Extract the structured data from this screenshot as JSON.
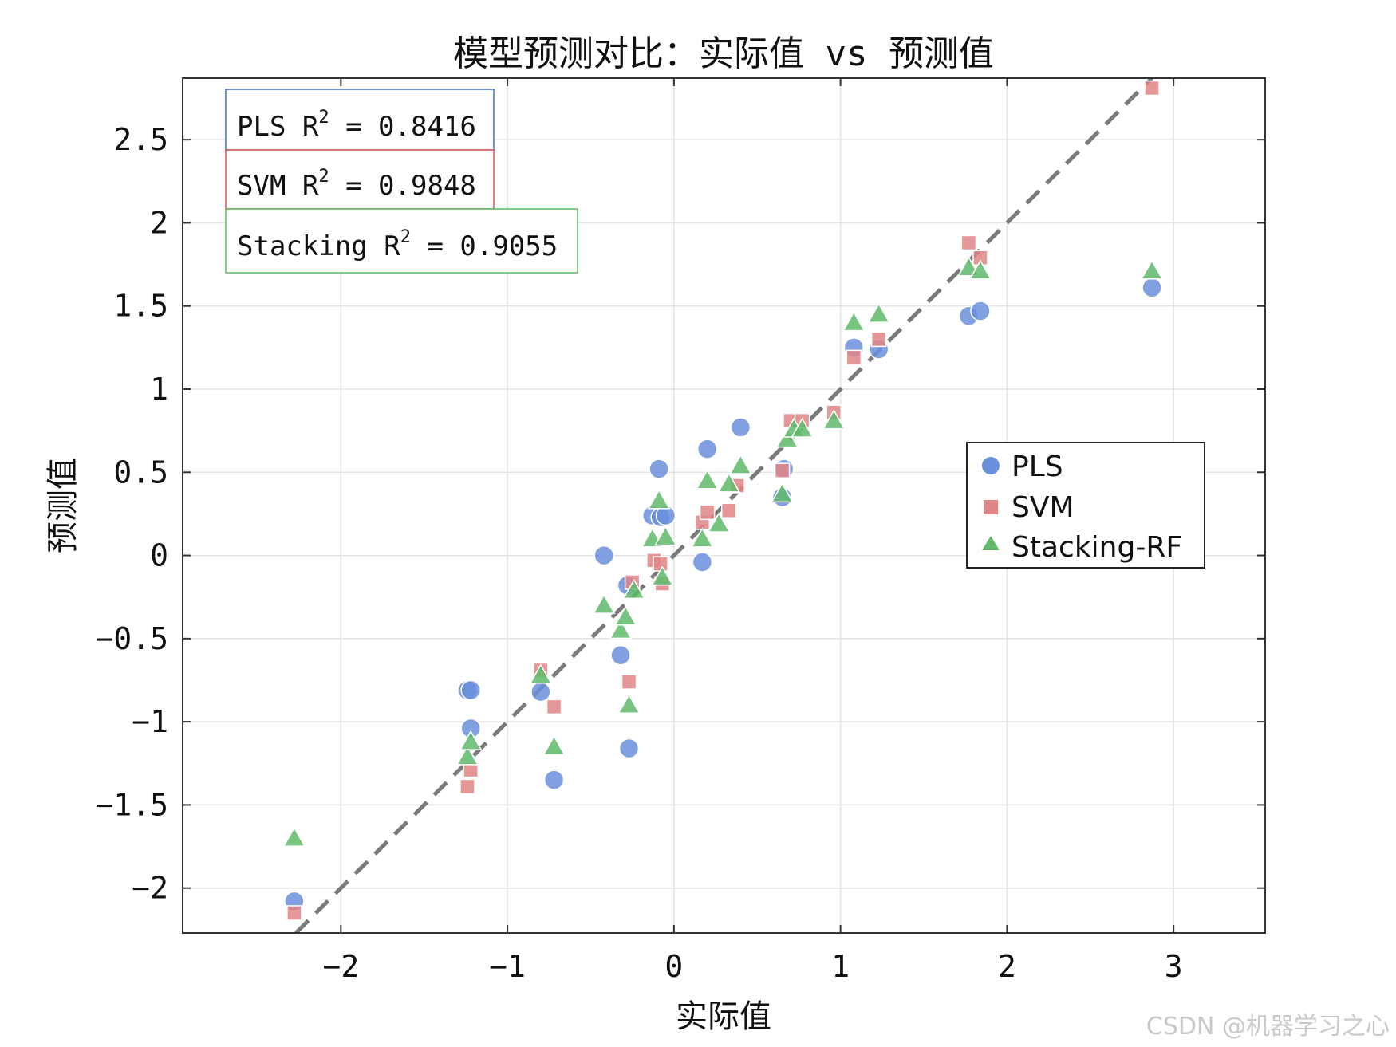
{
  "chart_data": {
    "type": "scatter",
    "title": "模型预测对比：实际值 vs 预测值",
    "xlabel": "实际值",
    "ylabel": "预测值",
    "xlim": [
      -2.95,
      3.55
    ],
    "ylim": [
      -2.27,
      2.87
    ],
    "x_ticks": [
      -2,
      -1,
      0,
      1,
      2,
      3
    ],
    "x_tick_labels": [
      "−2",
      "−1",
      "0",
      "1",
      "2",
      "3"
    ],
    "y_ticks": [
      -2,
      -1.5,
      -1,
      -0.5,
      0,
      0.5,
      1,
      1.5,
      2,
      2.5
    ],
    "y_tick_labels": [
      "−2",
      "−1.5",
      "−1",
      "−0.5",
      "0",
      "0.5",
      "1",
      "1.5",
      "2",
      "2.5"
    ],
    "grid": true,
    "reference_line": {
      "style": "dashed",
      "color": "#7a7a7a",
      "equation": "y = x"
    },
    "legend": {
      "position": "right-middle",
      "items": [
        "PLS",
        "SVM",
        "Stacking-RF"
      ]
    },
    "r2_boxes": [
      {
        "model": "PLS",
        "value": "0.8416",
        "color": "#4472c4"
      },
      {
        "model": "SVM",
        "value": "0.9848",
        "color": "#d9534f"
      },
      {
        "model": "Stacking",
        "value": "0.9055",
        "color": "#5cb85c"
      }
    ],
    "series": [
      {
        "name": "PLS",
        "marker": "circle",
        "color": "#6a8fdc",
        "points": [
          [
            -2.28,
            -2.08
          ],
          [
            -1.24,
            -0.81
          ],
          [
            -1.22,
            -0.81
          ],
          [
            -1.22,
            -1.04
          ],
          [
            -0.8,
            -0.82
          ],
          [
            -0.72,
            -1.35
          ],
          [
            -0.42,
            0.0
          ],
          [
            -0.32,
            -0.6
          ],
          [
            -0.28,
            -0.18
          ],
          [
            -0.27,
            -1.16
          ],
          [
            -0.13,
            0.24
          ],
          [
            -0.09,
            0.52
          ],
          [
            -0.08,
            0.23
          ],
          [
            -0.05,
            0.24
          ],
          [
            0.17,
            -0.04
          ],
          [
            0.2,
            0.64
          ],
          [
            0.4,
            0.77
          ],
          [
            0.65,
            0.35
          ],
          [
            0.66,
            0.52
          ],
          [
            1.08,
            1.25
          ],
          [
            1.23,
            1.24
          ],
          [
            1.77,
            1.44
          ],
          [
            1.84,
            1.47
          ],
          [
            2.87,
            1.61
          ]
        ]
      },
      {
        "name": "SVM",
        "marker": "square",
        "color": "#e08585",
        "points": [
          [
            -2.28,
            -2.15
          ],
          [
            -1.24,
            -1.39
          ],
          [
            -1.22,
            -1.29
          ],
          [
            -0.8,
            -0.69
          ],
          [
            -0.72,
            -0.91
          ],
          [
            -0.27,
            -0.76
          ],
          [
            -0.25,
            -0.16
          ],
          [
            -0.12,
            -0.03
          ],
          [
            -0.08,
            -0.05
          ],
          [
            -0.07,
            -0.17
          ],
          [
            0.17,
            0.2
          ],
          [
            0.2,
            0.26
          ],
          [
            0.33,
            0.27
          ],
          [
            0.38,
            0.42
          ],
          [
            0.65,
            0.51
          ],
          [
            0.7,
            0.81
          ],
          [
            0.77,
            0.81
          ],
          [
            0.96,
            0.86
          ],
          [
            1.08,
            1.19
          ],
          [
            1.23,
            1.3
          ],
          [
            1.77,
            1.88
          ],
          [
            1.84,
            1.79
          ],
          [
            2.87,
            2.81
          ]
        ]
      },
      {
        "name": "Stacking-RF",
        "marker": "triangle",
        "color": "#5fba6b",
        "points": [
          [
            -2.28,
            -1.7
          ],
          [
            -1.24,
            -1.21
          ],
          [
            -1.22,
            -1.12
          ],
          [
            -0.8,
            -0.72
          ],
          [
            -0.72,
            -1.15
          ],
          [
            -0.42,
            -0.3
          ],
          [
            -0.32,
            -0.45
          ],
          [
            -0.29,
            -0.37
          ],
          [
            -0.27,
            -0.9
          ],
          [
            -0.24,
            -0.21
          ],
          [
            -0.13,
            0.1
          ],
          [
            -0.09,
            0.33
          ],
          [
            -0.07,
            -0.13
          ],
          [
            -0.05,
            0.11
          ],
          [
            0.17,
            0.1
          ],
          [
            0.2,
            0.45
          ],
          [
            0.27,
            0.19
          ],
          [
            0.33,
            0.43
          ],
          [
            0.4,
            0.54
          ],
          [
            0.65,
            0.37
          ],
          [
            0.68,
            0.7
          ],
          [
            0.72,
            0.76
          ],
          [
            0.77,
            0.76
          ],
          [
            0.96,
            0.81
          ],
          [
            1.08,
            1.4
          ],
          [
            1.23,
            1.45
          ],
          [
            1.77,
            1.73
          ],
          [
            1.84,
            1.71
          ],
          [
            2.87,
            1.71
          ]
        ]
      }
    ]
  },
  "watermark": "CSDN @机器学习之心"
}
